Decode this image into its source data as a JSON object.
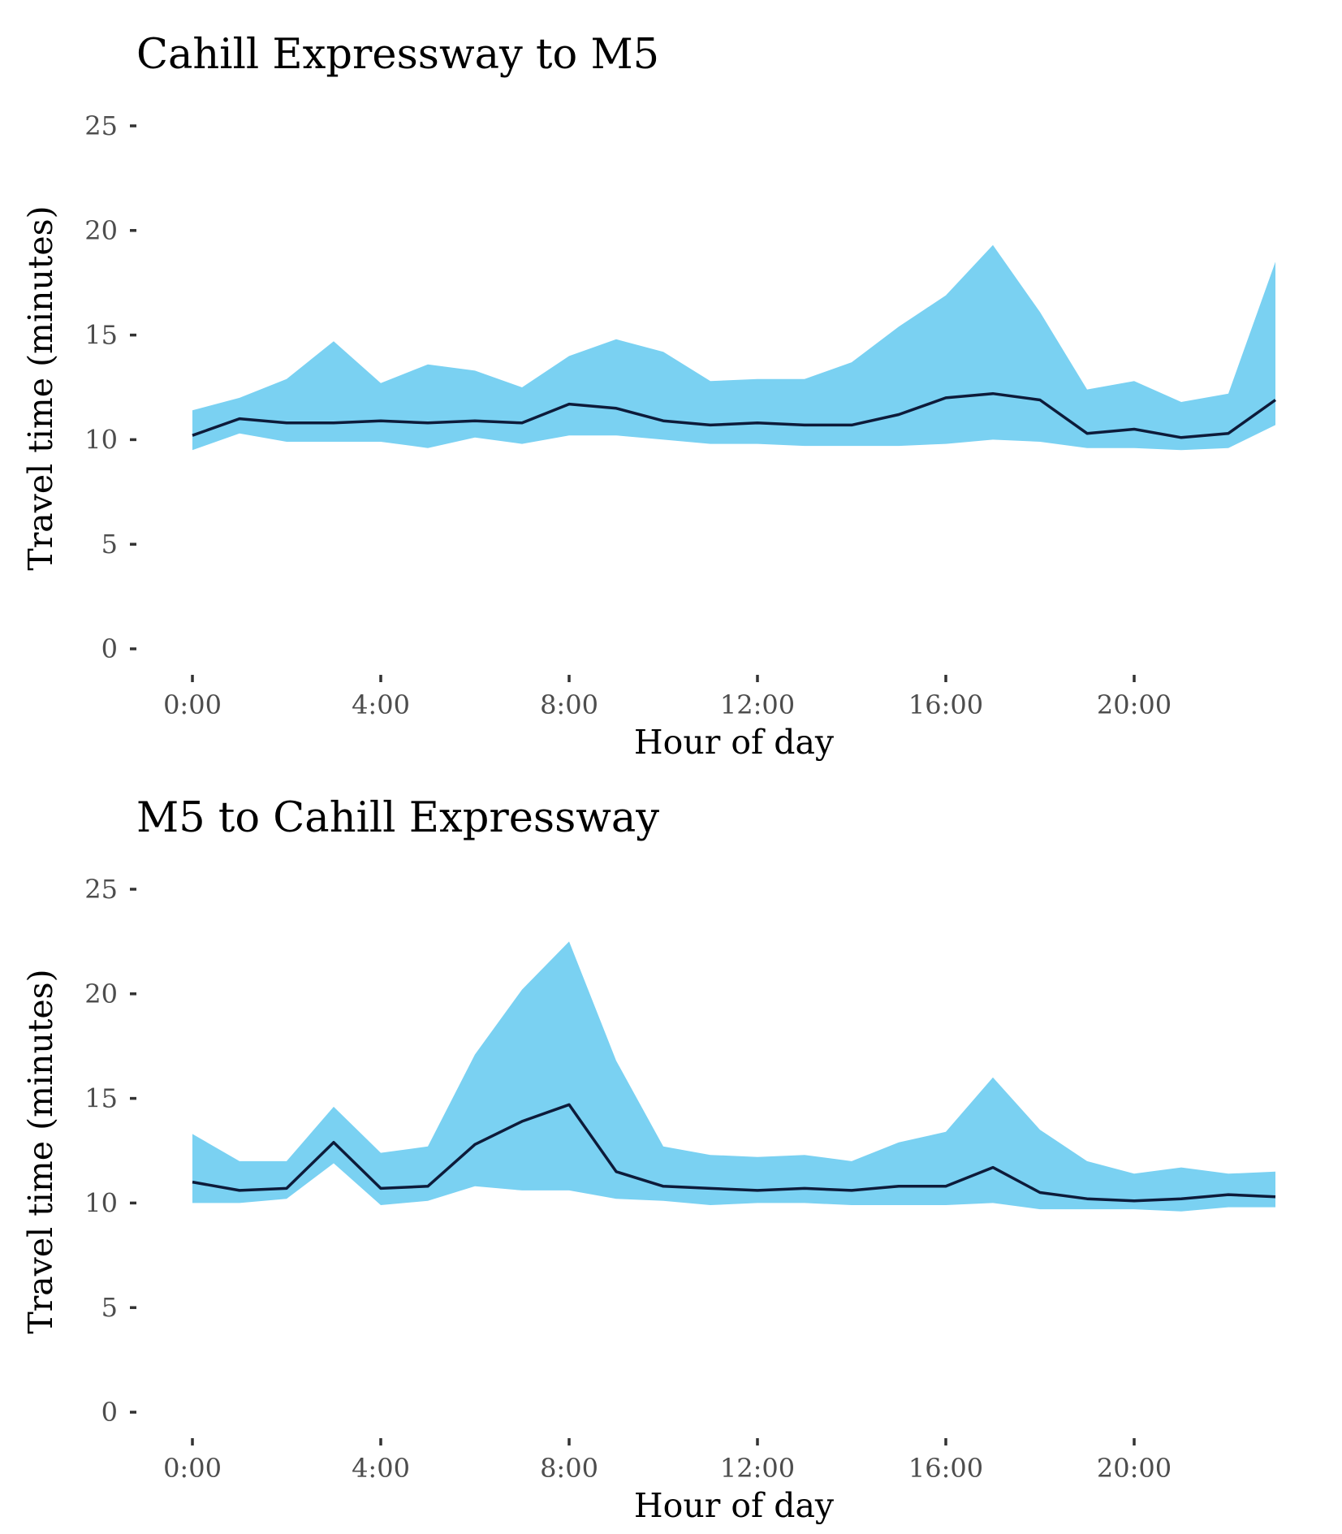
{
  "colors": {
    "band_fill": "#7ad1f2",
    "line": "#0d1b3a",
    "tick_label": "#4d4d4d",
    "background": "#ffffff"
  },
  "chart_data": [
    {
      "type": "area",
      "title": "Cahill Expressway to M5",
      "xlabel": "Hour of day",
      "ylabel": "Travel time (minutes)",
      "x": [
        0,
        1,
        2,
        3,
        4,
        5,
        6,
        7,
        8,
        9,
        10,
        11,
        12,
        13,
        14,
        15,
        16,
        17,
        18,
        19,
        20,
        21,
        22,
        23
      ],
      "xlim": [
        0,
        23
      ],
      "ylim": [
        0,
        25
      ],
      "x_ticks": [
        0,
        4,
        8,
        12,
        16,
        20
      ],
      "x_tick_labels": [
        "0:00",
        "4:00",
        "8:00",
        "12:00",
        "16:00",
        "20:00"
      ],
      "y_ticks": [
        0,
        5,
        10,
        15,
        20,
        25
      ],
      "y_tick_labels": [
        "0",
        "5",
        "10",
        "15",
        "20",
        "25"
      ],
      "grid": false,
      "series": [
        {
          "kind": "line",
          "values": [
            10.2,
            11.0,
            10.8,
            10.8,
            10.9,
            10.8,
            10.9,
            10.8,
            11.7,
            11.5,
            10.9,
            10.7,
            10.8,
            10.7,
            10.7,
            11.2,
            12.0,
            12.2,
            11.9,
            10.3,
            10.5,
            10.1,
            10.3,
            11.9
          ]
        },
        {
          "kind": "band",
          "lower": [
            9.5,
            10.3,
            9.9,
            9.9,
            9.9,
            9.6,
            10.1,
            9.8,
            10.2,
            10.2,
            10.0,
            9.8,
            9.8,
            9.7,
            9.7,
            9.7,
            9.8,
            10.0,
            9.9,
            9.6,
            9.6,
            9.5,
            9.6,
            10.7
          ],
          "upper": [
            11.4,
            12.0,
            12.9,
            14.7,
            12.7,
            13.6,
            13.3,
            12.5,
            14.0,
            14.8,
            14.2,
            12.8,
            12.9,
            12.9,
            13.7,
            15.4,
            16.9,
            19.3,
            16.1,
            12.4,
            12.8,
            11.8,
            12.2,
            18.5
          ]
        }
      ]
    },
    {
      "type": "area",
      "title": "M5 to Cahill Expressway",
      "xlabel": "Hour of day",
      "ylabel": "Travel time (minutes)",
      "x": [
        0,
        1,
        2,
        3,
        4,
        5,
        6,
        7,
        8,
        9,
        10,
        11,
        12,
        13,
        14,
        15,
        16,
        17,
        18,
        19,
        20,
        21,
        22,
        23
      ],
      "xlim": [
        0,
        23
      ],
      "ylim": [
        0,
        25
      ],
      "x_ticks": [
        0,
        4,
        8,
        12,
        16,
        20
      ],
      "x_tick_labels": [
        "0:00",
        "4:00",
        "8:00",
        "12:00",
        "16:00",
        "20:00"
      ],
      "y_ticks": [
        0,
        5,
        10,
        15,
        20,
        25
      ],
      "y_tick_labels": [
        "0",
        "5",
        "10",
        "15",
        "20",
        "25"
      ],
      "grid": false,
      "series": [
        {
          "kind": "line",
          "values": [
            11.0,
            10.6,
            10.7,
            12.9,
            10.7,
            10.8,
            12.8,
            13.9,
            14.7,
            11.5,
            10.8,
            10.7,
            10.6,
            10.7,
            10.6,
            10.8,
            10.8,
            11.7,
            10.5,
            10.2,
            10.1,
            10.2,
            10.4,
            10.3
          ]
        },
        {
          "kind": "band",
          "lower": [
            10.0,
            10.0,
            10.2,
            11.9,
            9.9,
            10.1,
            10.8,
            10.6,
            10.6,
            10.2,
            10.1,
            9.9,
            10.0,
            10.0,
            9.9,
            9.9,
            9.9,
            10.0,
            9.7,
            9.7,
            9.7,
            9.6,
            9.8,
            9.8
          ],
          "upper": [
            13.3,
            12.0,
            12.0,
            14.6,
            12.4,
            12.7,
            17.1,
            20.2,
            22.5,
            16.8,
            12.7,
            12.3,
            12.2,
            12.3,
            12.0,
            12.9,
            13.4,
            16.0,
            13.5,
            12.0,
            11.4,
            11.7,
            11.4,
            11.5
          ]
        }
      ]
    }
  ]
}
